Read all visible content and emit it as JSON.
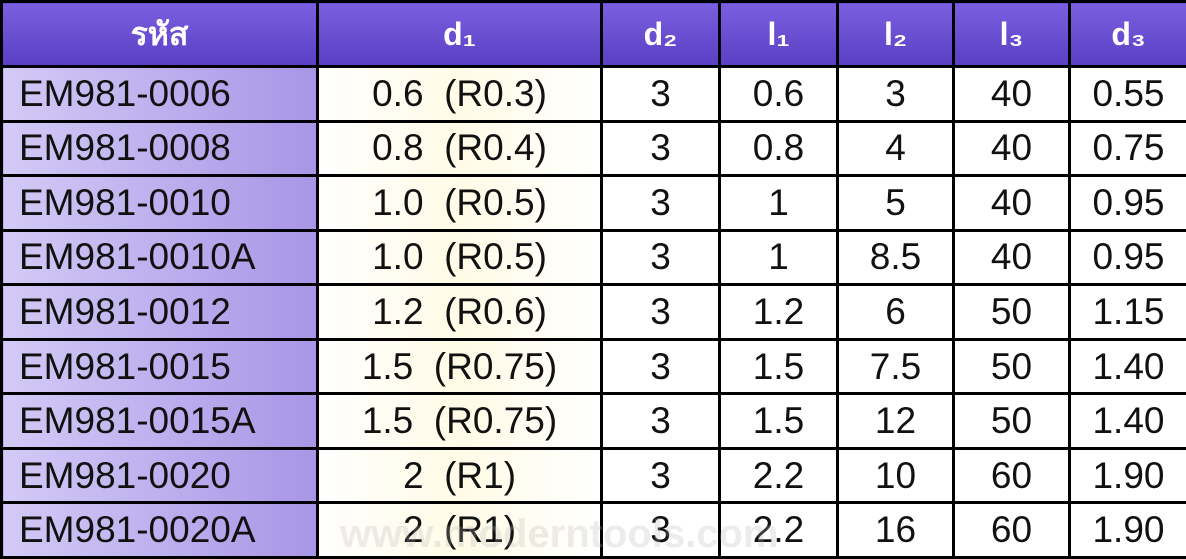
{
  "table": {
    "header": [
      "รหัส",
      "d₁",
      "d₂",
      "l₁",
      "l₂",
      "l₃",
      "d₃"
    ],
    "rows": [
      [
        "EM981-0006",
        "0.6  (R0.3)",
        "3",
        "0.6",
        "3",
        "40",
        "0.55"
      ],
      [
        "EM981-0008",
        "0.8  (R0.4)",
        "3",
        "0.8",
        "4",
        "40",
        "0.75"
      ],
      [
        "EM981-0010",
        "1.0  (R0.5)",
        "3",
        "1",
        "5",
        "40",
        "0.95"
      ],
      [
        "EM981-0010A",
        "1.0  (R0.5)",
        "3",
        "1",
        "8.5",
        "40",
        "0.95"
      ],
      [
        "EM981-0012",
        "1.2  (R0.6)",
        "3",
        "1.2",
        "6",
        "50",
        "1.15"
      ],
      [
        "EM981-0015",
        "1.5  (R0.75)",
        "3",
        "1.5",
        "7.5",
        "50",
        "1.40"
      ],
      [
        "EM981-0015A",
        "1.5  (R0.75)",
        "3",
        "1.5",
        "12",
        "50",
        "1.40"
      ],
      [
        "EM981-0020",
        "2  (R1)",
        "3",
        "2.2",
        "10",
        "60",
        "1.90"
      ],
      [
        "EM981-0020A",
        "2  (R1)",
        "3",
        "2.2",
        "16",
        "60",
        "1.90"
      ]
    ]
  },
  "watermark": "www.moderntools.com"
}
